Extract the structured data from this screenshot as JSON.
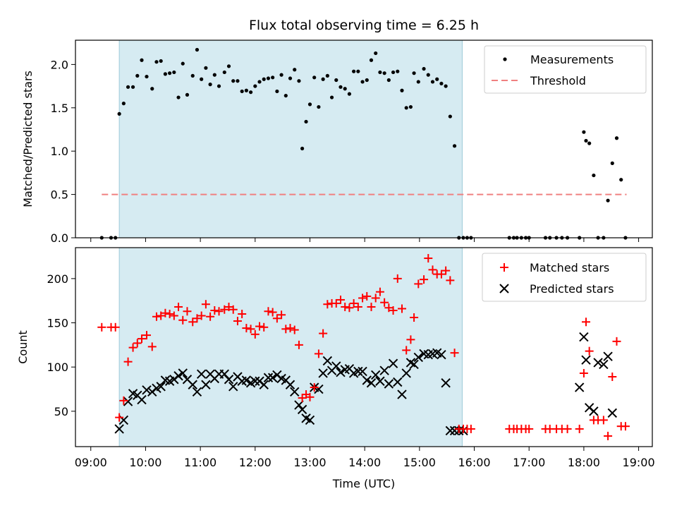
{
  "chart_data": [
    {
      "type": "scatter",
      "title": "Flux total observing time = 6.25 h",
      "ylabel": "Matched/Predicted stars",
      "ylim": [
        0,
        2.28
      ],
      "yticks": [
        0.0,
        0.5,
        1.0,
        1.5,
        2.0
      ],
      "ytick_labels": [
        "0.0",
        "0.5",
        "1.0",
        "1.5",
        "2.0"
      ],
      "shaded_region": {
        "x_start": 9.52,
        "x_end": 15.78,
        "color": "#add8e6"
      },
      "legend": {
        "placement": "top-right",
        "entries": [
          "Measurements",
          "Threshold"
        ]
      },
      "series": [
        {
          "name": "Measurements",
          "marker": "dot",
          "color": "#000000",
          "x": [
            9.2,
            9.37,
            9.45,
            9.52,
            9.6,
            9.68,
            9.77,
            9.85,
            9.93,
            10.02,
            10.12,
            10.2,
            10.28,
            10.36,
            10.44,
            10.52,
            10.6,
            10.68,
            10.76,
            10.86,
            10.94,
            11.02,
            11.1,
            11.18,
            11.26,
            11.34,
            11.44,
            11.52,
            11.6,
            11.68,
            11.76,
            11.84,
            11.92,
            12.0,
            12.08,
            12.16,
            12.24,
            12.32,
            12.4,
            12.48,
            12.56,
            12.64,
            12.72,
            12.8,
            12.86,
            12.93,
            13.0,
            13.08,
            13.16,
            13.24,
            13.32,
            13.4,
            13.48,
            13.56,
            13.64,
            13.72,
            13.8,
            13.88,
            13.96,
            14.04,
            14.12,
            14.2,
            14.28,
            14.36,
            14.44,
            14.52,
            14.6,
            14.68,
            14.76,
            14.84,
            14.9,
            14.98,
            15.08,
            15.16,
            15.24,
            15.32,
            15.4,
            15.48,
            15.56,
            15.64,
            15.72,
            15.8,
            15.87,
            15.94,
            16.64,
            16.72,
            16.78,
            16.86,
            16.94,
            17.0,
            17.3,
            17.38,
            17.5,
            17.6,
            17.7,
            17.92,
            18.0,
            18.04,
            18.1,
            18.18,
            18.26,
            18.36,
            18.44,
            18.52,
            18.6,
            18.68,
            18.76
          ],
          "y": [
            0.0,
            0.0,
            0.0,
            1.43,
            1.55,
            1.74,
            1.74,
            1.87,
            2.05,
            1.86,
            1.72,
            2.03,
            2.04,
            1.89,
            1.9,
            1.91,
            1.62,
            2.01,
            1.65,
            1.87,
            2.17,
            1.83,
            1.96,
            1.77,
            1.88,
            1.75,
            1.91,
            1.98,
            1.81,
            1.81,
            1.69,
            1.7,
            1.68,
            1.75,
            1.8,
            1.83,
            1.84,
            1.85,
            1.69,
            1.88,
            1.64,
            1.84,
            1.94,
            1.81,
            1.03,
            1.34,
            1.54,
            1.85,
            1.51,
            1.83,
            1.87,
            1.62,
            1.82,
            1.74,
            1.72,
            1.66,
            1.92,
            1.92,
            1.8,
            1.82,
            2.05,
            2.13,
            1.91,
            1.9,
            1.82,
            1.91,
            1.92,
            1.7,
            1.5,
            1.51,
            1.9,
            1.8,
            1.95,
            1.88,
            1.8,
            1.83,
            1.78,
            1.75,
            1.4,
            1.06,
            0.0,
            0.0,
            0.0,
            0.0,
            0.0,
            0.0,
            0.0,
            0.0,
            0.0,
            0.0,
            0.0,
            0.0,
            0.0,
            0.0,
            0.0,
            0.0,
            1.22,
            1.12,
            1.09,
            0.72,
            0.0,
            0.0,
            0.43,
            0.86,
            1.15,
            0.67,
            0.0
          ]
        },
        {
          "name": "Threshold",
          "marker": "dashed-line",
          "color": "#f08080",
          "x": [
            9.2,
            18.78
          ],
          "y": [
            0.5,
            0.5
          ]
        }
      ]
    },
    {
      "type": "scatter",
      "xlabel": "Time (UTC)",
      "ylabel": "Count",
      "xlim": [
        8.72,
        19.25
      ],
      "ylim": [
        10,
        235
      ],
      "xticks": [
        9,
        10,
        11,
        12,
        13,
        14,
        15,
        16,
        17,
        18,
        19
      ],
      "xtick_labels": [
        "09:00",
        "10:00",
        "11:00",
        "12:00",
        "13:00",
        "14:00",
        "15:00",
        "16:00",
        "17:00",
        "18:00",
        "19:00"
      ],
      "yticks": [
        50,
        100,
        150,
        200
      ],
      "ytick_labels": [
        "50",
        "100",
        "150",
        "200"
      ],
      "shaded_region": {
        "x_start": 9.52,
        "x_end": 15.78,
        "color": "#add8e6"
      },
      "legend": {
        "placement": "top-right",
        "entries": [
          "Matched stars",
          "Predicted stars"
        ]
      },
      "series": [
        {
          "name": "Matched stars",
          "marker": "plus",
          "color": "#ff0000",
          "x": [
            9.2,
            9.37,
            9.45,
            9.52,
            9.6,
            9.68,
            9.77,
            9.85,
            9.93,
            10.02,
            10.12,
            10.2,
            10.28,
            10.36,
            10.44,
            10.52,
            10.6,
            10.68,
            10.76,
            10.86,
            10.94,
            11.02,
            11.1,
            11.18,
            11.26,
            11.34,
            11.44,
            11.52,
            11.6,
            11.68,
            11.76,
            11.84,
            11.92,
            12.0,
            12.08,
            12.16,
            12.24,
            12.32,
            12.4,
            12.48,
            12.56,
            12.64,
            12.72,
            12.8,
            12.86,
            12.93,
            13.0,
            13.08,
            13.16,
            13.24,
            13.32,
            13.4,
            13.48,
            13.56,
            13.64,
            13.72,
            13.8,
            13.88,
            13.96,
            14.04,
            14.12,
            14.2,
            14.28,
            14.36,
            14.44,
            14.52,
            14.6,
            14.68,
            14.76,
            14.84,
            14.9,
            14.98,
            15.08,
            15.16,
            15.24,
            15.32,
            15.4,
            15.48,
            15.56,
            15.64,
            15.72,
            15.8,
            15.87,
            15.94,
            16.64,
            16.72,
            16.78,
            16.86,
            16.94,
            17.0,
            17.3,
            17.38,
            17.5,
            17.6,
            17.7,
            17.92,
            18.0,
            18.04,
            18.1,
            18.18,
            18.26,
            18.36,
            18.44,
            18.52,
            18.6,
            18.68,
            18.76
          ],
          "y": [
            145,
            145,
            145,
            43,
            62,
            106,
            122,
            127,
            132,
            136,
            123,
            157,
            158,
            161,
            160,
            158,
            168,
            153,
            163,
            151,
            155,
            158,
            171,
            157,
            164,
            163,
            165,
            168,
            165,
            152,
            160,
            144,
            143,
            137,
            146,
            145,
            163,
            162,
            155,
            159,
            143,
            144,
            142,
            125,
            65,
            69,
            66,
            77,
            115,
            138,
            171,
            172,
            172,
            176,
            168,
            167,
            172,
            168,
            178,
            180,
            168,
            178,
            185,
            173,
            167,
            164,
            200,
            166,
            119,
            131,
            156,
            194,
            199,
            223,
            210,
            205,
            205,
            209,
            198,
            116,
            30,
            30,
            30,
            30,
            30,
            30,
            30,
            30,
            30,
            30,
            30,
            30,
            30,
            30,
            30,
            30,
            93,
            151,
            118,
            40,
            40,
            40,
            22,
            89,
            129,
            33,
            33
          ]
        },
        {
          "name": "Predicted stars",
          "marker": "x",
          "color": "#000000",
          "x": [
            9.52,
            9.6,
            9.68,
            9.77,
            9.85,
            9.93,
            10.02,
            10.12,
            10.2,
            10.28,
            10.36,
            10.44,
            10.52,
            10.6,
            10.68,
            10.76,
            10.86,
            10.94,
            11.02,
            11.1,
            11.18,
            11.26,
            11.34,
            11.44,
            11.52,
            11.6,
            11.68,
            11.76,
            11.84,
            11.92,
            12.0,
            12.08,
            12.16,
            12.24,
            12.32,
            12.4,
            12.48,
            12.56,
            12.64,
            12.72,
            12.8,
            12.86,
            12.93,
            13.0,
            13.08,
            13.16,
            13.24,
            13.32,
            13.4,
            13.48,
            13.56,
            13.64,
            13.72,
            13.8,
            13.88,
            13.96,
            14.04,
            14.12,
            14.2,
            14.28,
            14.36,
            14.44,
            14.52,
            14.6,
            14.68,
            14.76,
            14.84,
            14.9,
            14.98,
            15.08,
            15.16,
            15.24,
            15.32,
            15.4,
            15.48,
            15.56,
            15.64,
            15.72,
            15.8,
            17.92,
            18.0,
            18.04,
            18.1,
            18.18,
            18.26,
            18.36,
            18.44,
            18.52
          ],
          "y": [
            30,
            40,
            61,
            70,
            68,
            63,
            74,
            72,
            76,
            78,
            85,
            84,
            86,
            90,
            93,
            86,
            80,
            72,
            92,
            80,
            92,
            87,
            92,
            92,
            86,
            78,
            89,
            84,
            85,
            82,
            84,
            84,
            80,
            88,
            88,
            91,
            87,
            85,
            80,
            72,
            57,
            52,
            42,
            40,
            77,
            75,
            93,
            107,
            96,
            101,
            94,
            97,
            98,
            93,
            95,
            95,
            85,
            82,
            91,
            84,
            96,
            81,
            104,
            83,
            69,
            93,
            105,
            103,
            111,
            115,
            114,
            115,
            116,
            114,
            82,
            28,
            28,
            28,
            28,
            77,
            134,
            108,
            54,
            50,
            105,
            103,
            112,
            48
          ]
        }
      ]
    }
  ]
}
